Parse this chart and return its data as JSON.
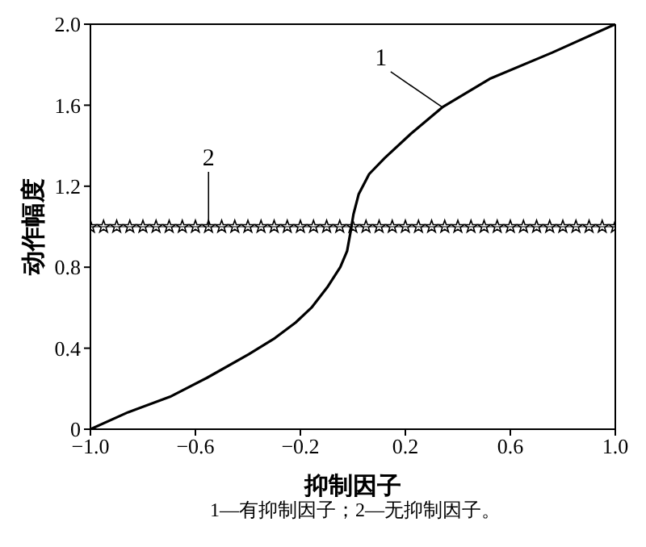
{
  "chart_data": {
    "type": "line",
    "xlabel": "抑制因子",
    "ylabel": "动作幅度",
    "annotations": [
      "1—有抑制因子；2—无抑制因子。"
    ],
    "xlim": [
      -1,
      1
    ],
    "ylim": [
      0,
      2
    ],
    "xticks": [
      {
        "value": -1,
        "label": "−1.0"
      },
      {
        "value": -0.6,
        "label": "−0.6"
      },
      {
        "value": -0.2,
        "label": "−0.2"
      },
      {
        "value": 0.2,
        "label": "0.2"
      },
      {
        "value": 0.6,
        "label": "0.6"
      },
      {
        "value": 1,
        "label": "1.0"
      }
    ],
    "yticks": [
      0,
      {
        "value": 0.4,
        "label": "0.4"
      },
      {
        "value": 0.8,
        "label": "0.8"
      },
      {
        "value": 1.2,
        "label": "1.2"
      },
      {
        "value": 1.6,
        "label": "1.6"
      },
      {
        "value": 2,
        "label": "2.0"
      }
    ],
    "legend": false,
    "line_style": "solid",
    "series": [
      {
        "name": "1",
        "color": "#000000",
        "marker": "none",
        "x": [
          -1,
          -0.856,
          -0.697,
          -0.557,
          -0.397,
          -0.297,
          -0.218,
          -0.158,
          -0.098,
          -0.048,
          -0.022,
          -0.008,
          0.002,
          0.022,
          0.062,
          0.122,
          0.222,
          0.341,
          0.521,
          0.76,
          1
        ],
        "values": [
          0,
          0.084,
          0.16,
          0.253,
          0.37,
          0.45,
          0.527,
          0.6,
          0.7,
          0.8,
          0.88,
          0.98,
          1.06,
          1.16,
          1.26,
          1.34,
          1.46,
          1.59,
          1.73,
          1.86,
          2
        ]
      },
      {
        "name": "2",
        "color": "#000000",
        "marker": "star",
        "x": [
          -1,
          -0.95,
          -0.9,
          -0.85,
          -0.8,
          -0.75,
          -0.7,
          -0.65,
          -0.6,
          -0.55,
          -0.5,
          -0.45,
          -0.4,
          -0.35,
          -0.3,
          -0.25,
          -0.2,
          -0.15,
          -0.1,
          -0.05,
          0,
          0.05,
          0.1,
          0.15,
          0.2,
          0.25,
          0.3,
          0.35,
          0.4,
          0.45,
          0.5,
          0.55,
          0.6,
          0.65,
          0.7,
          0.75,
          0.8,
          0.85,
          0.9,
          0.95,
          1
        ],
        "values": [
          1,
          1,
          1,
          1,
          1,
          1,
          1,
          1,
          1,
          1,
          1,
          1,
          1,
          1,
          1,
          1,
          1,
          1,
          1,
          1,
          1,
          1,
          1,
          1,
          1,
          1,
          1,
          1,
          1,
          1,
          1,
          1,
          1,
          1,
          1,
          1,
          1,
          1,
          1,
          1,
          1
        ]
      }
    ]
  }
}
